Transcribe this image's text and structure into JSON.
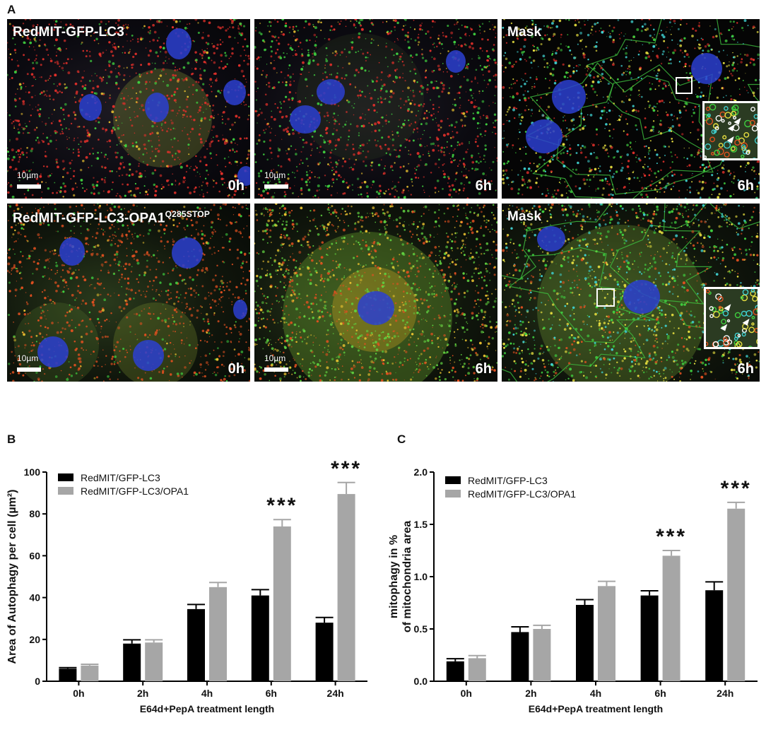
{
  "panels": {
    "a": "A",
    "b": "B",
    "c": "C"
  },
  "micrographs": {
    "r1c1": {
      "label": "RedMIT-GFP-LC3",
      "time": "0h",
      "scale": "10µm"
    },
    "r1c2": {
      "time": "6h",
      "scale": "10µm"
    },
    "r1c3": {
      "label": "Mask",
      "time": "6h"
    },
    "r2c1": {
      "label": "RedMIT-GFP-LC3-OPA1",
      "label_sup": "Q285STOP",
      "time": "0h",
      "scale": "10µm"
    },
    "r2c2": {
      "time": "6h",
      "scale": "10µm"
    },
    "r2c3": {
      "label": "Mask",
      "time": "6h"
    }
  },
  "chart_data": [
    {
      "type": "bar",
      "panel": "B",
      "categories": [
        "0h",
        "2h",
        "4h",
        "6h",
        "24h"
      ],
      "series": [
        {
          "name": "RedMIT/GFP-LC3",
          "color": "#000000",
          "values": [
            6,
            18,
            34.5,
            41,
            28
          ],
          "errors": [
            0.5,
            1.8,
            2.2,
            2.8,
            2.5
          ]
        },
        {
          "name": "RedMIT/GFP-LC3/OPA1",
          "color": "#a6a6a6",
          "values": [
            7.5,
            18.5,
            45,
            74,
            89.5
          ],
          "errors": [
            0.6,
            1.3,
            2.2,
            3.3,
            5.5
          ]
        }
      ],
      "significance": [
        {
          "category": "6h",
          "label": "***"
        },
        {
          "category": "24h",
          "label": "***"
        }
      ],
      "xlabel": "E64d+PepA treatment length",
      "ylabel": "Area of Autophagy per cell (µm²)",
      "yticks": [
        "0",
        "20",
        "40",
        "60",
        "80",
        "100"
      ],
      "ylim": [
        0,
        100
      ]
    },
    {
      "type": "bar",
      "panel": "C",
      "categories": [
        "0h",
        "2h",
        "4h",
        "6h",
        "24h"
      ],
      "series": [
        {
          "name": "RedMIT/GFP-LC3",
          "color": "#000000",
          "values": [
            0.19,
            0.47,
            0.73,
            0.82,
            0.87
          ],
          "errors": [
            0.025,
            0.05,
            0.05,
            0.045,
            0.08
          ]
        },
        {
          "name": "RedMIT/GFP-LC3/OPA1",
          "color": "#a6a6a6",
          "values": [
            0.22,
            0.5,
            0.91,
            1.2,
            1.65
          ],
          "errors": [
            0.025,
            0.035,
            0.045,
            0.05,
            0.06
          ]
        }
      ],
      "significance": [
        {
          "category": "6h",
          "label": "***"
        },
        {
          "category": "24h",
          "label": "***"
        }
      ],
      "xlabel": "E64d+PepA treatment length",
      "ylabel_line1": "mitophagy in %",
      "ylabel_line2": "of mitochondria area",
      "yticks": [
        "0.0",
        "0.5",
        "1.0",
        "1.5",
        "2.0"
      ],
      "ylim": [
        0,
        2.0
      ]
    }
  ]
}
